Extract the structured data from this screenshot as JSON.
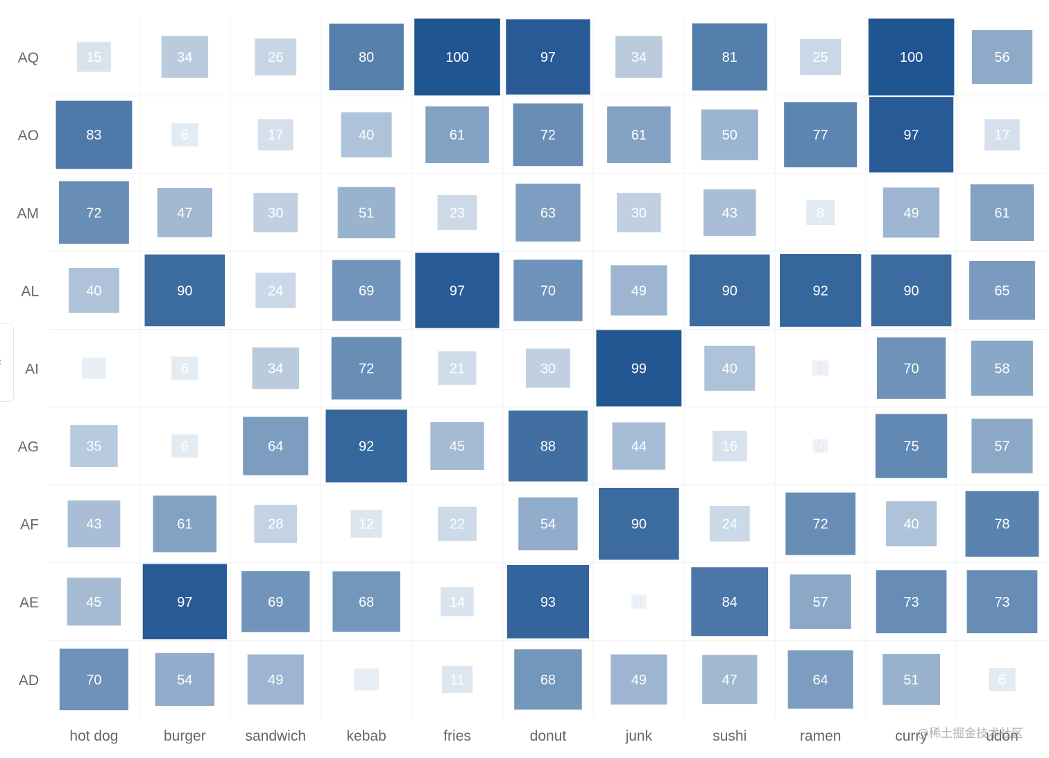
{
  "chart_data": {
    "type": "heatmap",
    "title": "",
    "xlabel": "",
    "ylabel": "",
    "x_categories": [
      "hot dog",
      "burger",
      "sandwich",
      "kebab",
      "fries",
      "donut",
      "junk",
      "sushi",
      "ramen",
      "curry",
      "udon"
    ],
    "y_categories": [
      "AQ",
      "AO",
      "AM",
      "AL",
      "AI",
      "AG",
      "AF",
      "AE",
      "AD"
    ],
    "values": [
      [
        15,
        34,
        26,
        80,
        100,
        97,
        34,
        81,
        25,
        100,
        56
      ],
      [
        83,
        6,
        17,
        40,
        61,
        72,
        61,
        50,
        77,
        97,
        17
      ],
      [
        72,
        47,
        30,
        51,
        23,
        63,
        30,
        43,
        8,
        49,
        61
      ],
      [
        40,
        90,
        24,
        69,
        97,
        70,
        49,
        90,
        92,
        90,
        65
      ],
      [
        3,
        6,
        34,
        72,
        21,
        30,
        99,
        40,
        1,
        70,
        58
      ],
      [
        35,
        6,
        64,
        92,
        45,
        88,
        44,
        16,
        0,
        75,
        57
      ],
      [
        43,
        61,
        28,
        12,
        22,
        54,
        90,
        24,
        72,
        40,
        78
      ],
      [
        45,
        97,
        69,
        68,
        14,
        93,
        0,
        84,
        57,
        73,
        73
      ],
      [
        70,
        54,
        49,
        4,
        11,
        68,
        49,
        47,
        64,
        51,
        6
      ]
    ],
    "value_range": [
      0,
      100
    ],
    "grid": true,
    "legend": "none",
    "colors": {
      "low": "#dce7f1",
      "high": "#1f5591",
      "grid_line": "#eef0f3",
      "axis_label": "#666666"
    }
  },
  "ui": {
    "side_tab_icon": "chevron-left-icon",
    "side_tab_glyph": "‹",
    "watermark": "@稀土掘金技术社区"
  }
}
